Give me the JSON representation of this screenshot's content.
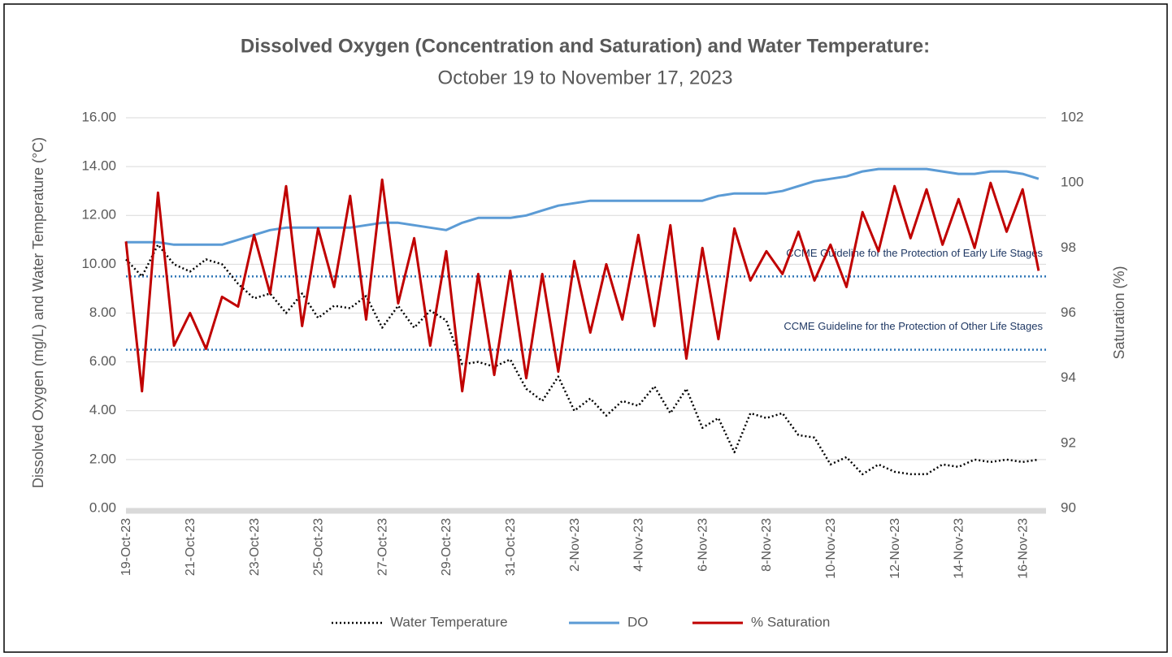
{
  "chart_data": {
    "type": "line",
    "title": "Dissolved Oxygen (Concentration and Saturation) and Water Temperature:",
    "subtitle": "October 19 to November 17, 2023",
    "y_label": "Dissolved Oxygen (mg/L) and Water Temperature (°C)",
    "y2_label": "Saturation (%)",
    "categories": [
      "19-Oct-23",
      null,
      null,
      null,
      "21-Oct-23",
      null,
      null,
      null,
      "23-Oct-23",
      null,
      null,
      null,
      "25-Oct-23",
      null,
      null,
      null,
      "27-Oct-23",
      null,
      null,
      null,
      "29-Oct-23",
      null,
      null,
      null,
      "31-Oct-23",
      null,
      null,
      null,
      "2-Nov-23",
      null,
      null,
      null,
      "4-Nov-23",
      null,
      null,
      null,
      "6-Nov-23",
      null,
      null,
      null,
      "8-Nov-23",
      null,
      null,
      null,
      "10-Nov-23",
      null,
      null,
      null,
      "12-Nov-23",
      null,
      null,
      null,
      "14-Nov-23",
      null,
      null,
      null,
      "16-Nov-23",
      null
    ],
    "series": [
      {
        "name": "Water Temperature",
        "color": "#000000",
        "dash": "dotted",
        "values": [
          10.2,
          9.5,
          10.8,
          10.0,
          9.7,
          10.2,
          10.0,
          9.2,
          8.6,
          8.8,
          8.0,
          8.8,
          7.8,
          8.3,
          8.2,
          8.7,
          7.4,
          8.3,
          7.4,
          8.1,
          7.7,
          5.9,
          6.0,
          5.8,
          6.1,
          4.9,
          4.4,
          5.4,
          4.0,
          4.5,
          3.8,
          4.4,
          4.2,
          5.0,
          3.9,
          4.9,
          3.3,
          3.7,
          2.3,
          3.9,
          3.7,
          3.9,
          3.0,
          2.9,
          1.8,
          2.1,
          1.4,
          1.8,
          1.5,
          1.4,
          1.4,
          1.8,
          1.7,
          2.0,
          1.9,
          2.0,
          1.9,
          2.0
        ]
      },
      {
        "name": "DO",
        "color": "#5b9bd5",
        "dash": "solid",
        "values": [
          10.9,
          10.9,
          10.9,
          10.8,
          10.8,
          10.8,
          10.8,
          11.0,
          11.2,
          11.4,
          11.5,
          11.5,
          11.5,
          11.5,
          11.5,
          11.6,
          11.7,
          11.7,
          11.6,
          11.5,
          11.4,
          11.7,
          11.9,
          11.9,
          11.9,
          12.0,
          12.2,
          12.4,
          12.5,
          12.6,
          12.6,
          12.6,
          12.6,
          12.6,
          12.6,
          12.6,
          12.6,
          12.8,
          12.9,
          12.9,
          12.9,
          13.0,
          13.2,
          13.4,
          13.5,
          13.6,
          13.8,
          13.9,
          13.9,
          13.9,
          13.9,
          13.8,
          13.7,
          13.7,
          13.8,
          13.8,
          13.7,
          13.5
        ]
      },
      {
        "name": "% Saturation",
        "color": "#c00000",
        "dash": "solid",
        "axis": "y2",
        "values": [
          98.2,
          93.6,
          99.7,
          95.0,
          96.0,
          94.9,
          96.5,
          96.2,
          98.4,
          96.6,
          99.9,
          95.6,
          98.6,
          96.8,
          99.6,
          95.8,
          100.1,
          96.3,
          98.3,
          95.0,
          97.9,
          93.6,
          97.2,
          94.1,
          97.3,
          94.0,
          97.2,
          94.2,
          97.6,
          95.4,
          97.5,
          95.8,
          98.4,
          95.6,
          98.7,
          94.6,
          98.0,
          95.2,
          98.6,
          97.0,
          97.9,
          97.2,
          98.5,
          97.0,
          98.1,
          96.8,
          99.1,
          97.9,
          99.9,
          98.3,
          99.8,
          98.1,
          99.5,
          98.0,
          100.0,
          98.5,
          99.8,
          97.3
        ]
      }
    ],
    "guidelines": [
      {
        "label": "CCME Guideline for the Protection of Early Life Stages",
        "value": 9.5,
        "color": "#2e75b6"
      },
      {
        "label": "CCME Guideline for the Protection of Other Life Stages",
        "value": 6.5,
        "color": "#2e75b6"
      }
    ],
    "ylim": [
      0,
      16
    ],
    "yticks": [
      {
        "value": 0,
        "label": "0.00"
      },
      {
        "value": 2,
        "label": "2.00"
      },
      {
        "value": 4,
        "label": "4.00"
      },
      {
        "value": 6,
        "label": "6.00"
      },
      {
        "value": 8,
        "label": "8.00"
      },
      {
        "value": 10,
        "label": "10.00"
      },
      {
        "value": 12,
        "label": "12.00"
      },
      {
        "value": 14,
        "label": "14.00"
      },
      {
        "value": 16,
        "label": "16.00"
      }
    ],
    "y2lim": [
      90,
      102
    ],
    "y2ticks": [
      90,
      92,
      94,
      96,
      98,
      100,
      102
    ],
    "grid": true,
    "legend": "bottom"
  }
}
